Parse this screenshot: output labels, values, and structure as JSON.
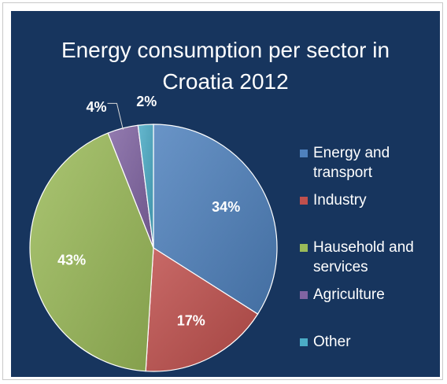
{
  "chart_data": {
    "type": "pie",
    "title_lines": [
      "Energy consumption per sector in",
      "Croatia 2012"
    ],
    "slices": [
      {
        "name": "Energy and transport",
        "legend_lines": [
          "Energy and",
          "transport"
        ],
        "value": 34,
        "label": "34%",
        "color": "#4f81bd"
      },
      {
        "name": "Industry",
        "legend_lines": [
          "Industry"
        ],
        "value": 17,
        "label": "17%",
        "color": "#c0504d"
      },
      {
        "name": "Hausehold and services",
        "legend_lines": [
          "Hausehold and",
          "services"
        ],
        "value": 43,
        "label": "43%",
        "color": "#9bbb59"
      },
      {
        "name": "Agriculture",
        "legend_lines": [
          "Agriculture"
        ],
        "value": 4,
        "label": "4%",
        "color": "#8064a2"
      },
      {
        "name": "Other",
        "legend_lines": [
          "Other"
        ],
        "value": 2,
        "label": "2%",
        "color": "#4bacc6"
      }
    ],
    "legend_position": "right",
    "background": "#17355e"
  }
}
